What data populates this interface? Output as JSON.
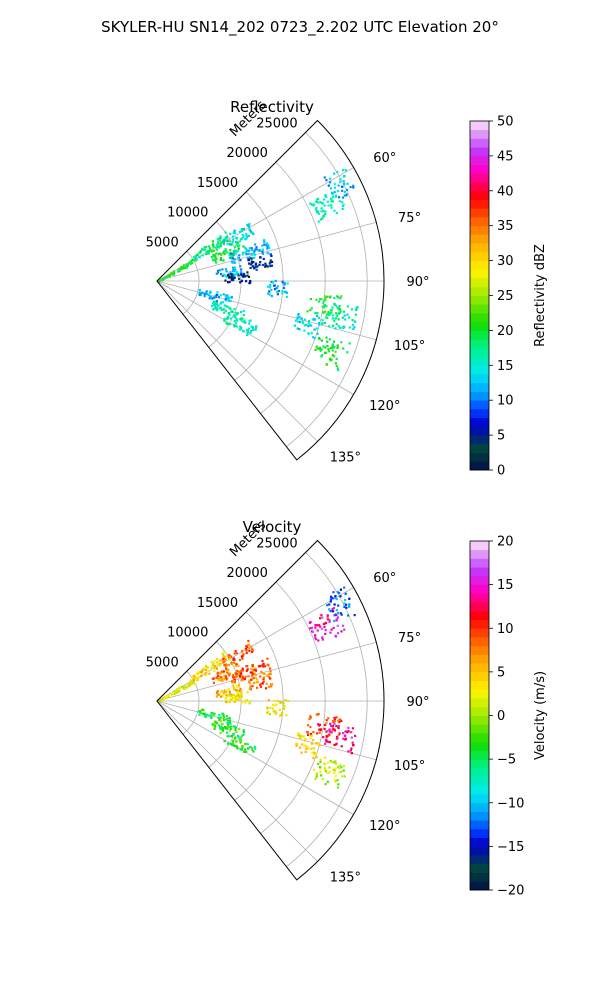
{
  "figure": {
    "title": "SKYLER-HU  SN14_202  0723_2.202 UTC Elevation 20°"
  },
  "chart_data": [
    {
      "type": "heatmap",
      "projection": "polar-sector",
      "title": "Reflectivity",
      "range_label": "Meters",
      "range_ticks": [
        {
          "value": 5000,
          "label": "5000"
        },
        {
          "value": 10000,
          "label": "10000"
        },
        {
          "value": 15000,
          "label": "15000"
        },
        {
          "value": 20000,
          "label": "20000"
        },
        {
          "value": 25000,
          "label": "25000"
        }
      ],
      "range_max": 27000,
      "azimuth_range_deg": [
        45,
        142
      ],
      "azimuth_ticks": [
        {
          "value": 60,
          "label": "60°"
        },
        {
          "value": 75,
          "label": "75°"
        },
        {
          "value": 90,
          "label": "90°"
        },
        {
          "value": 105,
          "label": "105°"
        },
        {
          "value": 120,
          "label": "120°"
        },
        {
          "value": 135,
          "label": "135°"
        }
      ],
      "grid": true,
      "colorbar": {
        "label": "Reflectivity dBZ",
        "min": 0,
        "max": 50,
        "ticks": [
          {
            "value": 0,
            "label": "0"
          },
          {
            "value": 5,
            "label": "5"
          },
          {
            "value": 10,
            "label": "10"
          },
          {
            "value": 15,
            "label": "15"
          },
          {
            "value": 20,
            "label": "20"
          },
          {
            "value": 25,
            "label": "25"
          },
          {
            "value": 30,
            "label": "30"
          },
          {
            "value": 35,
            "label": "35"
          },
          {
            "value": 40,
            "label": "40"
          },
          {
            "value": 45,
            "label": "45"
          },
          {
            "value": 50,
            "label": "50"
          }
        ]
      },
      "echoes": [
        {
          "az": 60,
          "r": [
            0,
            5000
          ],
          "value": 20
        },
        {
          "az": 57,
          "r": [
            5000,
            10000
          ],
          "value": 18
        },
        {
          "az": 60,
          "r": [
            9000,
            13000
          ],
          "value": 14
        },
        {
          "az": 68,
          "r": [
            7000,
            11000
          ],
          "value": 20
        },
        {
          "az": 72,
          "r": [
            9000,
            14000
          ],
          "value": 12
        },
        {
          "az": 79,
          "r": [
            11000,
            14000
          ],
          "value": 6
        },
        {
          "az": 82,
          "r": [
            7000,
            10000
          ],
          "value": 12
        },
        {
          "az": 87,
          "r": [
            8000,
            11000
          ],
          "value": 4
        },
        {
          "az": 93,
          "r": [
            13000,
            15500
          ],
          "value": 12
        },
        {
          "az": 104,
          "r": [
            5000,
            9000
          ],
          "value": 12
        },
        {
          "az": 112,
          "r": [
            7000,
            11000
          ],
          "value": 16
        },
        {
          "az": 117,
          "r": [
            9000,
            13000
          ],
          "value": 16
        },
        {
          "az": 98,
          "r": [
            18000,
            22000
          ],
          "value": 20
        },
        {
          "az": 101,
          "r": [
            20000,
            24000
          ],
          "value": 16
        },
        {
          "az": 112,
          "r": [
            20000,
            24000
          ],
          "value": 20
        },
        {
          "az": 106,
          "r": [
            17000,
            20000
          ],
          "value": 14
        },
        {
          "az": 66,
          "r": [
            20000,
            24000
          ],
          "value": 16
        },
        {
          "az": 62,
          "r": [
            23000,
            26000
          ],
          "value": 12
        }
      ]
    },
    {
      "type": "heatmap",
      "projection": "polar-sector",
      "title": "Velocity",
      "range_label": "Meters",
      "range_ticks": [
        {
          "value": 5000,
          "label": "5000"
        },
        {
          "value": 10000,
          "label": "10000"
        },
        {
          "value": 15000,
          "label": "15000"
        },
        {
          "value": 20000,
          "label": "20000"
        },
        {
          "value": 25000,
          "label": "25000"
        }
      ],
      "range_max": 27000,
      "azimuth_range_deg": [
        45,
        142
      ],
      "azimuth_ticks": [
        {
          "value": 60,
          "label": "60°"
        },
        {
          "value": 75,
          "label": "75°"
        },
        {
          "value": 90,
          "label": "90°"
        },
        {
          "value": 105,
          "label": "105°"
        },
        {
          "value": 120,
          "label": "120°"
        },
        {
          "value": 135,
          "label": "135°"
        }
      ],
      "grid": true,
      "colorbar": {
        "label": "Velocity (m/s)",
        "min": -20,
        "max": 20,
        "ticks": [
          {
            "value": -20,
            "label": "−20"
          },
          {
            "value": -15,
            "label": "−15"
          },
          {
            "value": -10,
            "label": "−10"
          },
          {
            "value": -5,
            "label": "−5"
          },
          {
            "value": 0,
            "label": "0"
          },
          {
            "value": 5,
            "label": "5"
          },
          {
            "value": 10,
            "label": "10"
          },
          {
            "value": 15,
            "label": "15"
          },
          {
            "value": 20,
            "label": "20"
          }
        ]
      },
      "echoes": [
        {
          "az": 60,
          "r": [
            0,
            5000
          ],
          "value": 2
        },
        {
          "az": 57,
          "r": [
            5000,
            10000
          ],
          "value": 4
        },
        {
          "az": 60,
          "r": [
            9000,
            13000
          ],
          "value": 9
        },
        {
          "az": 68,
          "r": [
            7000,
            11000
          ],
          "value": 8
        },
        {
          "az": 72,
          "r": [
            9000,
            14000
          ],
          "value": 9
        },
        {
          "az": 79,
          "r": [
            11000,
            14000
          ],
          "value": 8
        },
        {
          "az": 82,
          "r": [
            7000,
            10000
          ],
          "value": 5
        },
        {
          "az": 87,
          "r": [
            8000,
            11000
          ],
          "value": 3
        },
        {
          "az": 93,
          "r": [
            13000,
            15500
          ],
          "value": 3
        },
        {
          "az": 104,
          "r": [
            5000,
            9000
          ],
          "value": -4
        },
        {
          "az": 112,
          "r": [
            7000,
            11000
          ],
          "value": -3
        },
        {
          "az": 117,
          "r": [
            9000,
            13000
          ],
          "value": -4
        },
        {
          "az": 98,
          "r": [
            18000,
            22000
          ],
          "value": 10
        },
        {
          "az": 101,
          "r": [
            20000,
            24000
          ],
          "value": 14
        },
        {
          "az": 112,
          "r": [
            20000,
            24000
          ],
          "value": 1
        },
        {
          "az": 106,
          "r": [
            17000,
            20000
          ],
          "value": 4
        },
        {
          "az": 66,
          "r": [
            20000,
            24000
          ],
          "value": 15
        },
        {
          "az": 62,
          "r": [
            23000,
            26000
          ],
          "value": -12
        }
      ]
    }
  ]
}
